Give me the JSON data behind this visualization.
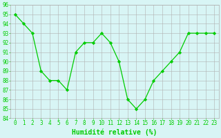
{
  "x": [
    0,
    1,
    2,
    3,
    4,
    5,
    6,
    7,
    8,
    9,
    10,
    11,
    12,
    13,
    14,
    15,
    16,
    17,
    18,
    19,
    20,
    21,
    22,
    23
  ],
  "y": [
    95,
    94,
    93,
    89,
    88,
    88,
    87,
    91,
    92,
    92,
    93,
    92,
    90,
    86,
    85,
    86,
    88,
    89,
    90,
    91,
    93,
    93,
    93,
    93
  ],
  "line_color": "#00cc00",
  "marker": "D",
  "markersize": 2.2,
  "linewidth": 0.9,
  "background_color": "#d8f5f5",
  "grid_color": "#b0b0b0",
  "xlabel": "Humidité relative (%)",
  "xlabel_color": "#00cc00",
  "tick_color": "#00cc00",
  "ylim": [
    84,
    96
  ],
  "yticks": [
    84,
    85,
    86,
    87,
    88,
    89,
    90,
    91,
    92,
    93,
    94,
    95,
    96
  ],
  "xticks": [
    0,
    1,
    2,
    3,
    4,
    5,
    6,
    7,
    8,
    9,
    10,
    11,
    12,
    13,
    14,
    15,
    16,
    17,
    18,
    19,
    20,
    21,
    22,
    23
  ],
  "xlim": [
    -0.5,
    23.5
  ],
  "xlabel_fontsize": 7,
  "tick_fontsize": 5.5,
  "linestyle": "-"
}
